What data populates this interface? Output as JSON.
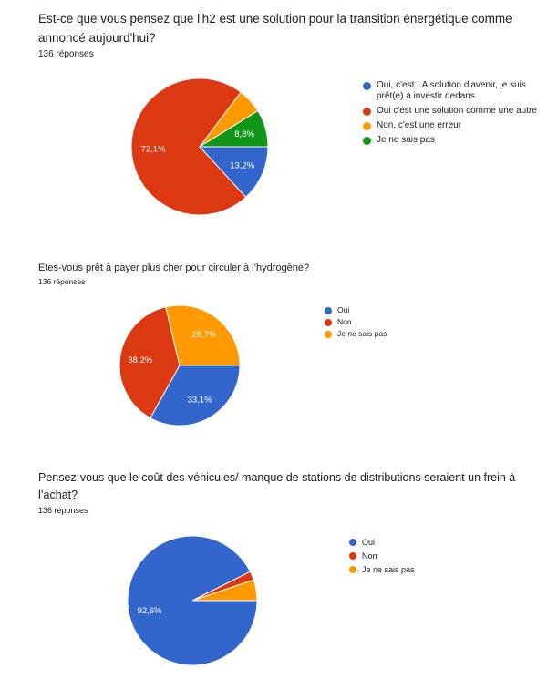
{
  "chart_data": [
    {
      "type": "pie",
      "title": "Est-ce que vous pensez que l'h2 est une solution pour la transition énergétique comme annoncé aujourd'hui?",
      "responses": "136 réponses",
      "categories": [
        "Oui, c'est LA solution d'avenir, je suis prêt(e) à investir dedans",
        "Oui c'est une solution comme une autre",
        "Non, c'est une erreur",
        "Je ne sais pas"
      ],
      "values": [
        13.2,
        72.1,
        5.9,
        8.8
      ],
      "slice_labels": [
        "13,2%",
        "72,1%",
        "",
        "8,8%"
      ],
      "colors": [
        "#3366cc",
        "#dc3912",
        "#ff9900",
        "#109618"
      ],
      "legend_position": "right"
    },
    {
      "type": "pie",
      "title": "Etes-vous prêt à payer plus cher pour circuler à l’hydrogène?",
      "responses": "136 réponses",
      "categories": [
        "Oui",
        "Non",
        "Je ne sais pas"
      ],
      "values": [
        33.1,
        38.2,
        28.7
      ],
      "slice_labels": [
        "33,1%",
        "38,2%",
        "28,7%"
      ],
      "colors": [
        "#3366cc",
        "#dc3912",
        "#ff9900"
      ],
      "legend_position": "right"
    },
    {
      "type": "pie",
      "title": "Pensez-vous que le coût des véhicules/ manque de stations de distributions seraient un frein à l’achat?",
      "responses": "136 réponses",
      "categories": [
        "Oui",
        "Non",
        "Je ne sais pas"
      ],
      "values": [
        92.6,
        2.2,
        5.2
      ],
      "slice_labels": [
        "92,6%",
        "",
        ""
      ],
      "colors": [
        "#3366cc",
        "#dc3912",
        "#ff9900"
      ],
      "legend_position": "right"
    }
  ]
}
